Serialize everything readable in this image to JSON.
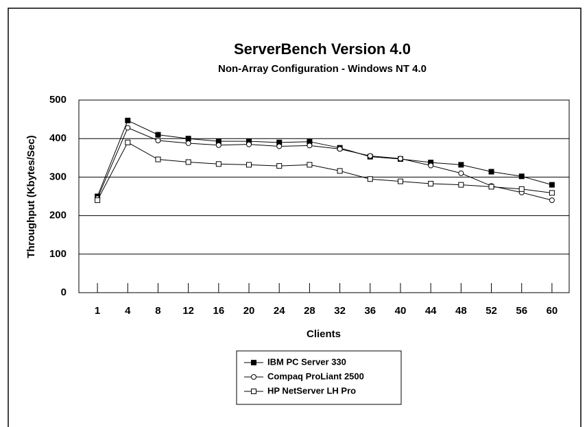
{
  "chart_data": {
    "type": "line",
    "title": "ServerBench Version 4.0",
    "subtitle": "Non-Array Configuration - Windows NT 4.0",
    "x_label": "Clients",
    "y_label": "Throughput (Kbytes/Sec)",
    "categories": [
      "1",
      "4",
      "8",
      "12",
      "16",
      "20",
      "24",
      "28",
      "32",
      "36",
      "40",
      "44",
      "48",
      "52",
      "56",
      "60"
    ],
    "series": [
      {
        "name": "IBM PC Server 330",
        "color": "#000000",
        "marker": "filled-square",
        "values": [
          250,
          447,
          410,
          400,
          393,
          393,
          390,
          392,
          376,
          353,
          347,
          338,
          332,
          314,
          302,
          280
        ]
      },
      {
        "name": "Compaq ProLiant 2500",
        "color": "#000000",
        "marker": "open-circle",
        "values": [
          245,
          428,
          395,
          388,
          383,
          385,
          380,
          382,
          373,
          355,
          348,
          330,
          310,
          277,
          260,
          240
        ]
      },
      {
        "name": "HP NetServer LH Pro",
        "color": "#000000",
        "marker": "open-square",
        "values": [
          240,
          390,
          346,
          339,
          334,
          332,
          329,
          332,
          316,
          295,
          289,
          283,
          280,
          275,
          269,
          259
        ]
      }
    ],
    "ylim": [
      0,
      500
    ],
    "yticks": [
      0,
      100,
      200,
      300,
      400,
      500
    ],
    "grid": true,
    "legend": "bottom"
  }
}
